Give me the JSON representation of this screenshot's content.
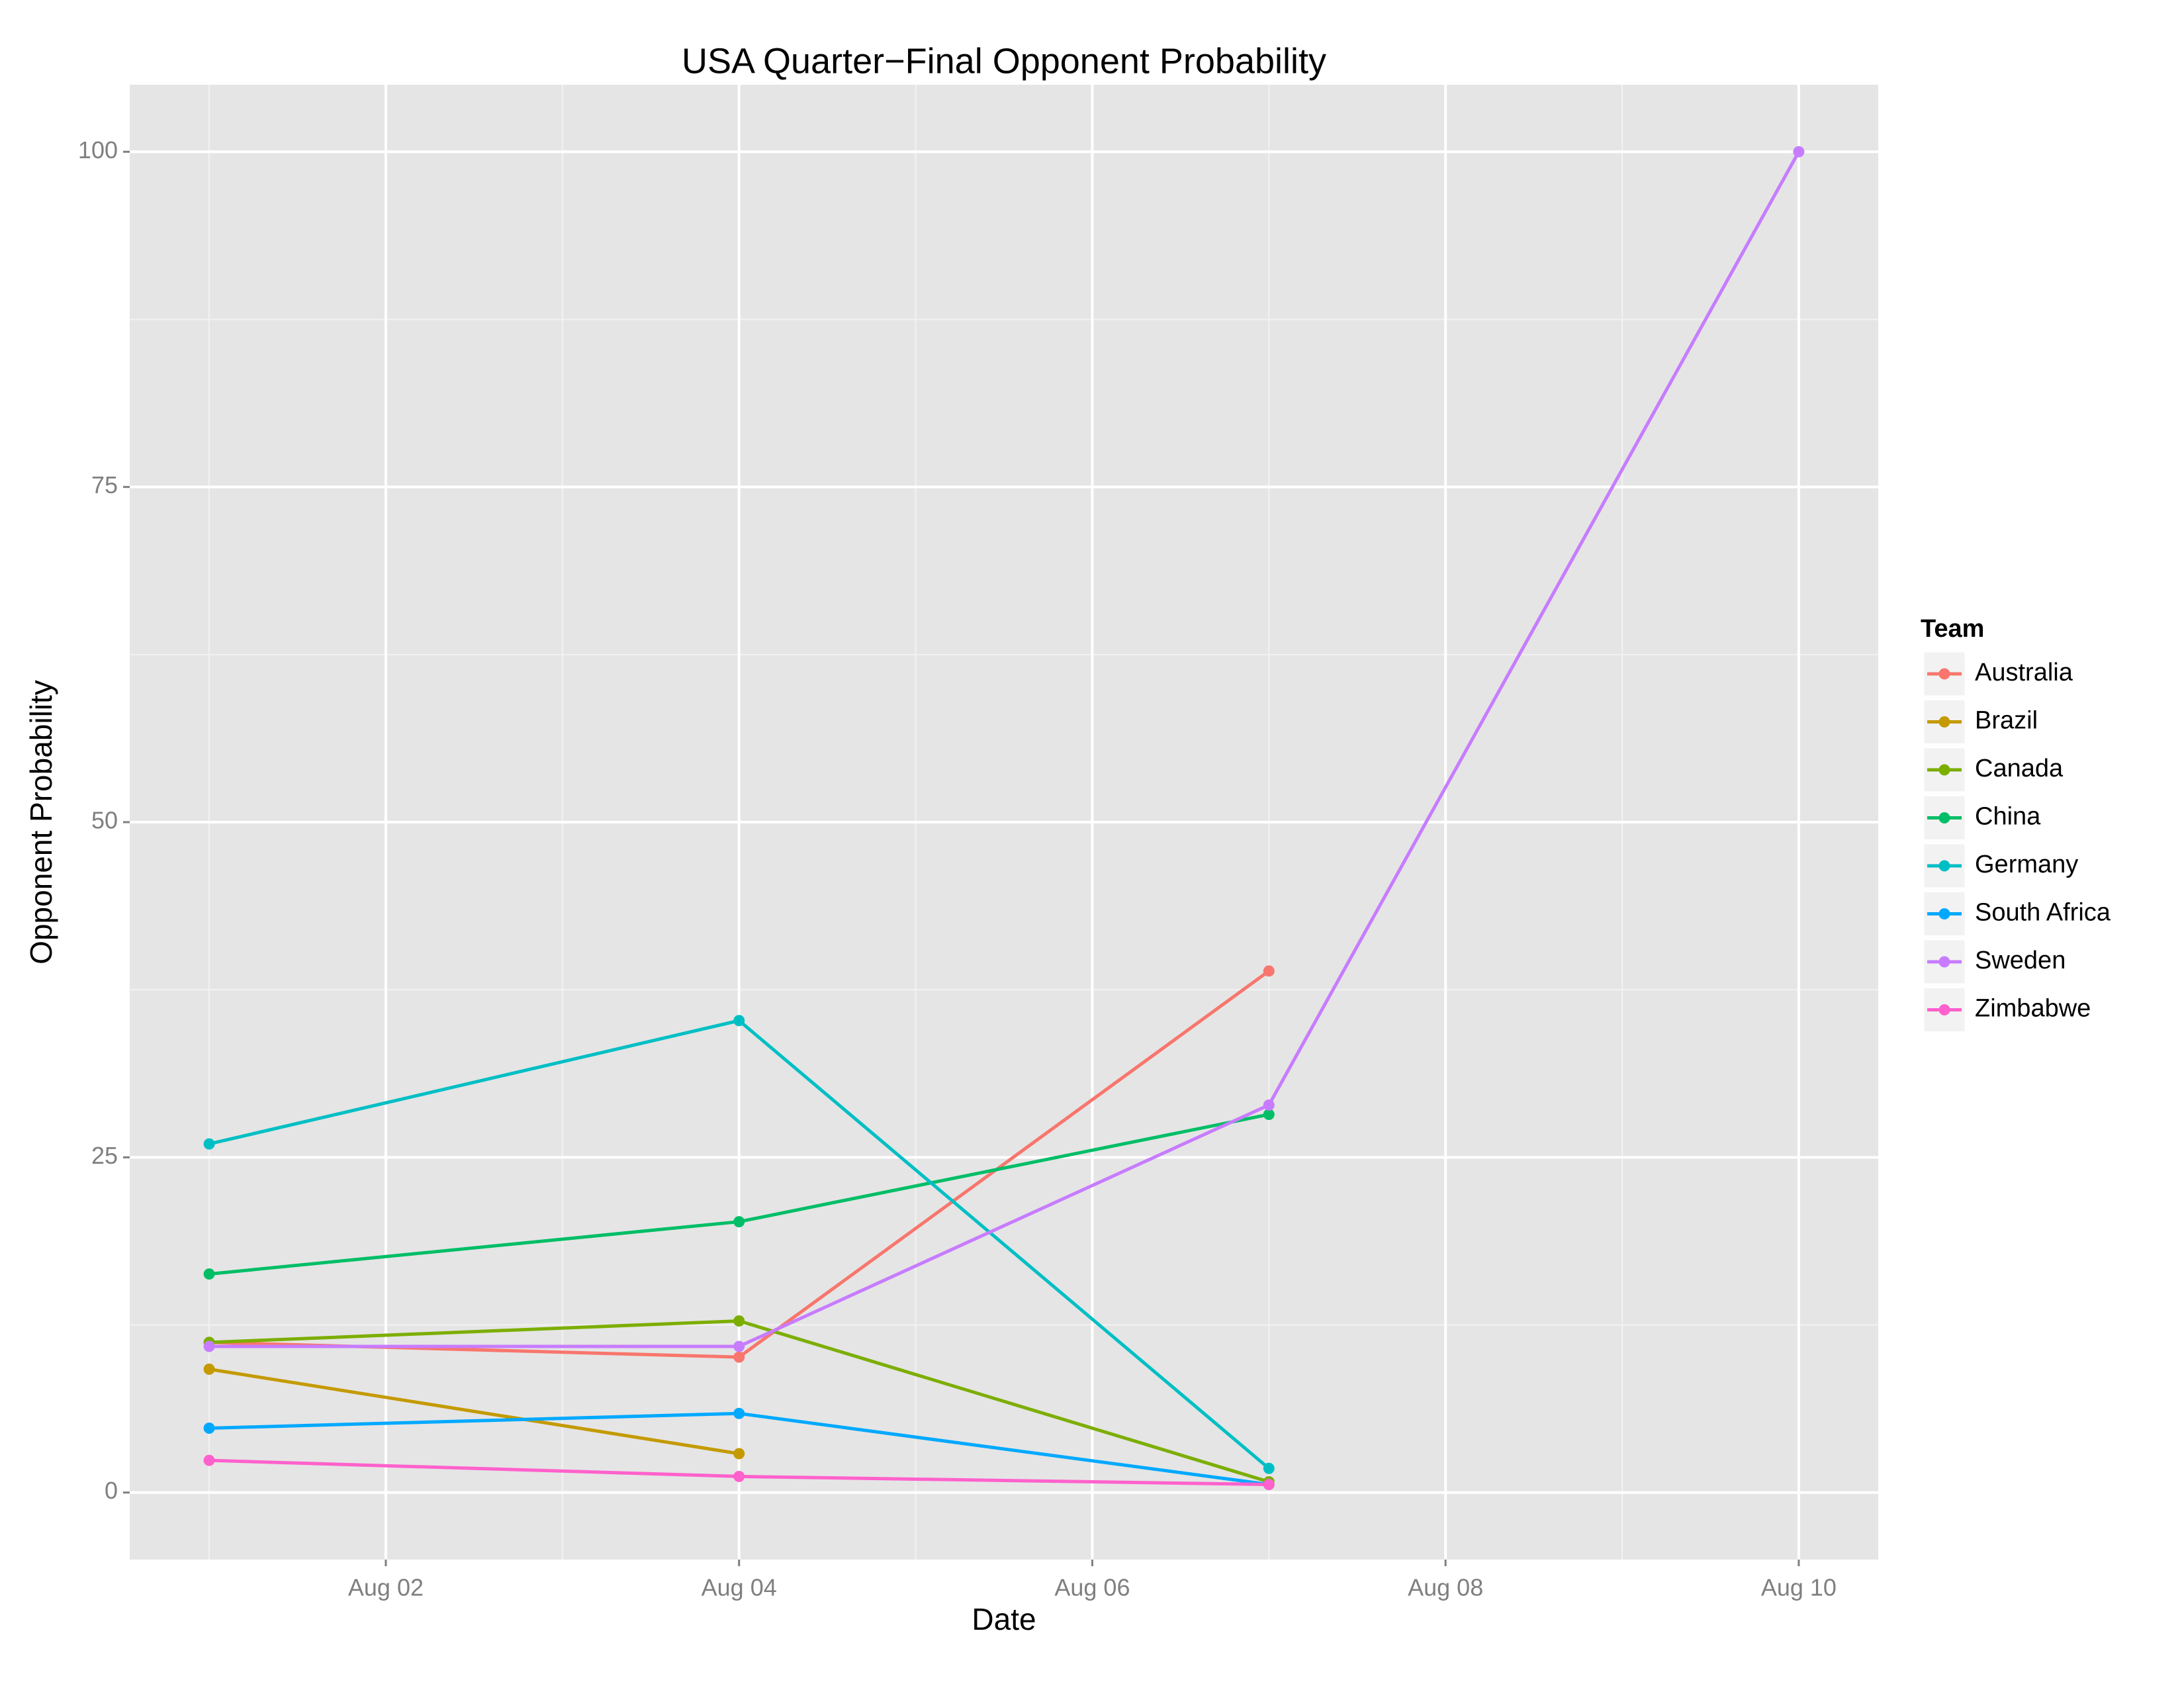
{
  "chart_data": {
    "type": "line",
    "title": "USA Quarter−Final Opponent Probability",
    "x_label": "Date",
    "y_label": "Opponent Probability",
    "legend_title": "Team",
    "legend": "right",
    "grid": true,
    "x": [
      1,
      4,
      7,
      10
    ],
    "xlim": [
      0.55,
      10.45
    ],
    "xticks": [
      {
        "value": 2,
        "label": "Aug 02"
      },
      {
        "value": 4,
        "label": "Aug 04"
      },
      {
        "value": 6,
        "label": "Aug 06"
      },
      {
        "value": 8,
        "label": "Aug 08"
      },
      {
        "value": 10,
        "label": "Aug 10"
      }
    ],
    "ylim": [
      -5,
      105
    ],
    "yticks": [
      0,
      25,
      50,
      75,
      100
    ],
    "series": [
      {
        "name": "Australia",
        "color": "#F8766D",
        "values": [
          11.2,
          10.1,
          38.9,
          null
        ]
      },
      {
        "name": "Brazil",
        "color": "#C49A00",
        "values": [
          9.2,
          2.9,
          null,
          null
        ]
      },
      {
        "name": "Canada",
        "color": "#7CAE00",
        "values": [
          11.2,
          12.8,
          0.8,
          null
        ]
      },
      {
        "name": "China",
        "color": "#00BE67",
        "values": [
          16.3,
          20.2,
          28.2,
          null
        ]
      },
      {
        "name": "Germany",
        "color": "#00BFC4",
        "values": [
          26.0,
          35.2,
          1.8,
          null
        ]
      },
      {
        "name": "South Africa",
        "color": "#00A9FF",
        "values": [
          4.8,
          5.9,
          0.6,
          null
        ]
      },
      {
        "name": "Sweden",
        "color": "#C77CFF",
        "values": [
          10.9,
          10.9,
          28.9,
          100
        ]
      },
      {
        "name": "Zimbabwe",
        "color": "#FF61CC",
        "values": [
          2.4,
          1.2,
          0.6,
          null
        ]
      }
    ]
  }
}
